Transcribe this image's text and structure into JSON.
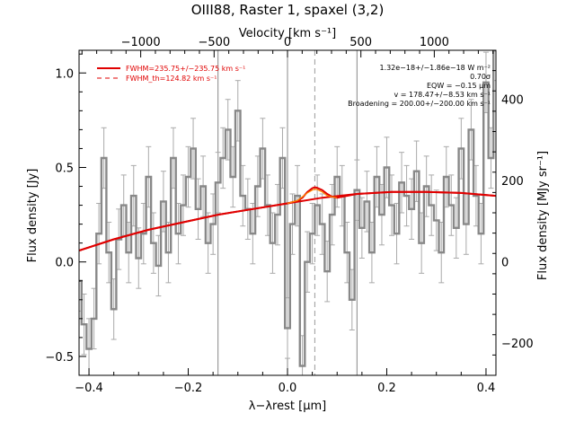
{
  "chart_data": {
    "type": "line",
    "title": "OIII88, Raster 1, spaxel (3,2)",
    "xlabel": "λ−λrest [μm]",
    "ylabel": "Flux density [Jy]",
    "top_axis_label": "Velocity [km s⁻¹]",
    "right_axis_label": "Flux density [MJy sr⁻¹]",
    "xlim": [
      -0.42,
      0.42
    ],
    "ylim": [
      -0.6,
      1.12
    ],
    "top_xlim": [
      -1420,
      1420
    ],
    "right_ylim": [
      -280,
      520
    ],
    "x_ticks": [
      -0.4,
      -0.2,
      0.0,
      0.2,
      0.4
    ],
    "x_tick_labels": [
      "−0.4",
      "−0.2",
      "0.0",
      "0.2",
      "0.4"
    ],
    "y_ticks": [
      -0.5,
      0.0,
      0.5,
      1.0
    ],
    "y_tick_labels": [
      "−0.5",
      "0.0",
      "0.5",
      "1.0"
    ],
    "top_ticks": [
      -1000,
      -500,
      0,
      500,
      1000
    ],
    "top_tick_labels": [
      "−1000",
      "−500",
      "0",
      "500",
      "1000"
    ],
    "right_ticks": [
      -200,
      0,
      200,
      400
    ],
    "right_tick_labels": [
      "−200",
      "0",
      "200",
      "400"
    ],
    "vertical_lines_x": [
      -0.14,
      0.0,
      0.14
    ],
    "line_center_x": 0.055,
    "legend": {
      "placement": "top-left",
      "entries": [
        {
          "label": "FWHM=235.75+/−235.75 km s⁻¹",
          "style": "solid",
          "color": "#e00000"
        },
        {
          "label": "FWHM_th=124.82 km s⁻¹",
          "style": "dashed",
          "color": "#e00000"
        }
      ]
    },
    "annotations": [
      "1.32e−18+/−1.86e−18 W m⁻²",
      "0.70σ",
      "EQW = −0.15 μm",
      "v = 178.47+/−8.53 km s⁻¹",
      "Broadening = 200.00+/−200.00 km s⁻¹"
    ],
    "series": [
      {
        "name": "data",
        "color": "#888888",
        "style": "steps",
        "x": [
          -0.42,
          -0.41,
          -0.4,
          -0.39,
          -0.38,
          -0.37,
          -0.36,
          -0.35,
          -0.34,
          -0.33,
          -0.32,
          -0.31,
          -0.3,
          -0.29,
          -0.28,
          -0.27,
          -0.26,
          -0.25,
          -0.24,
          -0.23,
          -0.22,
          -0.21,
          -0.2,
          -0.19,
          -0.18,
          -0.17,
          -0.16,
          -0.15,
          -0.14,
          -0.13,
          -0.12,
          -0.11,
          -0.1,
          -0.09,
          -0.08,
          -0.07,
          -0.06,
          -0.05,
          -0.04,
          -0.03,
          -0.02,
          -0.01,
          0.0,
          0.01,
          0.02,
          0.03,
          0.04,
          0.05,
          0.06,
          0.07,
          0.08,
          0.09,
          0.1,
          0.11,
          0.12,
          0.13,
          0.14,
          0.15,
          0.16,
          0.17,
          0.18,
          0.19,
          0.2,
          0.21,
          0.22,
          0.23,
          0.24,
          0.25,
          0.26,
          0.27,
          0.28,
          0.29,
          0.3,
          0.31,
          0.32,
          0.33,
          0.34,
          0.35,
          0.36,
          0.37,
          0.38,
          0.39,
          0.4,
          0.41,
          0.42
        ],
        "y": [
          -0.1,
          -0.33,
          -0.46,
          -0.3,
          0.15,
          0.55,
          0.05,
          -0.25,
          0.12,
          0.3,
          0.05,
          0.35,
          0.02,
          0.15,
          0.45,
          0.1,
          -0.02,
          0.32,
          0.05,
          0.55,
          0.15,
          0.3,
          0.45,
          0.6,
          0.28,
          0.4,
          0.1,
          0.2,
          0.42,
          0.55,
          0.7,
          0.45,
          0.8,
          0.35,
          0.28,
          0.15,
          0.4,
          0.6,
          0.3,
          0.1,
          0.25,
          0.55,
          -0.35,
          0.2,
          0.35,
          -0.55,
          0.0,
          0.15,
          0.3,
          0.2,
          -0.05,
          0.25,
          0.45,
          0.35,
          0.05,
          -0.2,
          0.38,
          0.18,
          0.32,
          0.05,
          0.45,
          0.25,
          0.5,
          0.3,
          0.15,
          0.42,
          0.35,
          0.28,
          0.48,
          0.1,
          0.4,
          0.3,
          0.22,
          0.05,
          0.45,
          0.3,
          0.18,
          0.6,
          0.2,
          0.7,
          0.35,
          0.15,
          0.95,
          0.55,
          1.12
        ],
        "error": 0.16
      },
      {
        "name": "continuum",
        "color": "#e00000",
        "style": "solid",
        "x": [
          -0.42,
          -0.35,
          -0.28,
          -0.21,
          -0.14,
          -0.07,
          0.0,
          0.07,
          0.14,
          0.21,
          0.28,
          0.35,
          0.42
        ],
        "y": [
          0.06,
          0.12,
          0.17,
          0.21,
          0.25,
          0.28,
          0.31,
          0.34,
          0.36,
          0.37,
          0.37,
          0.365,
          0.35
        ]
      },
      {
        "name": "fit",
        "color": "#e00000",
        "style": "solid",
        "x": [
          -0.42,
          -0.35,
          -0.28,
          -0.21,
          -0.14,
          -0.07,
          0.0,
          0.02,
          0.03,
          0.04,
          0.05,
          0.055,
          0.06,
          0.07,
          0.08,
          0.09,
          0.1,
          0.14,
          0.21,
          0.28,
          0.35,
          0.42
        ],
        "y": [
          0.06,
          0.12,
          0.17,
          0.21,
          0.25,
          0.28,
          0.31,
          0.323,
          0.34,
          0.37,
          0.39,
          0.395,
          0.392,
          0.38,
          0.36,
          0.345,
          0.34,
          0.36,
          0.37,
          0.37,
          0.365,
          0.35
        ]
      },
      {
        "name": "fit_th",
        "color": "#ff8800",
        "style": "solid",
        "x": [
          0.0,
          0.02,
          0.03,
          0.04,
          0.05,
          0.055,
          0.06,
          0.07,
          0.08,
          0.1
        ],
        "y": [
          0.31,
          0.325,
          0.345,
          0.365,
          0.38,
          0.385,
          0.383,
          0.37,
          0.35,
          0.34
        ]
      }
    ]
  }
}
